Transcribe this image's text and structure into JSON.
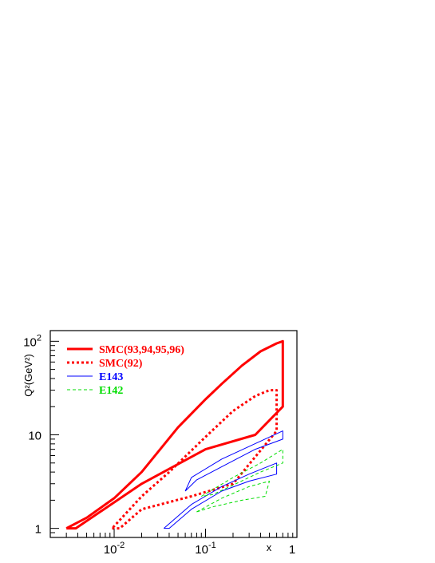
{
  "chart_data": {
    "type": "line",
    "title": "",
    "xlabel": "x",
    "ylabel": "Q²(GeV²)",
    "xscale": "log",
    "yscale": "log",
    "xlim": [
      0.002,
      1
    ],
    "ylim": [
      0.8,
      130
    ],
    "grid": false,
    "legend_position": "top-left",
    "x_ticks": [
      {
        "value": 0.01,
        "base": "10",
        "exp": "-2"
      },
      {
        "value": 0.1,
        "base": "10",
        "exp": "-1"
      },
      {
        "value": 1,
        "base": "1",
        "exp": ""
      }
    ],
    "y_ticks": [
      {
        "value": 1,
        "base": "1",
        "exp": ""
      },
      {
        "value": 10,
        "base": "10",
        "exp": ""
      },
      {
        "value": 100,
        "base": "10",
        "exp": "2"
      }
    ],
    "series": [
      {
        "name": "SMC(93,94,95,96)",
        "color": "#ff0000",
        "style": "solid",
        "width": 3,
        "points": [
          [
            0.003,
            1.0
          ],
          [
            0.0038,
            1.0
          ],
          [
            0.02,
            3.0
          ],
          [
            0.1,
            7.0
          ],
          [
            0.35,
            10.0
          ],
          [
            0.7,
            20.0
          ],
          [
            0.7,
            100.0
          ],
          [
            0.6,
            95.0
          ],
          [
            0.4,
            78.0
          ],
          [
            0.25,
            55.0
          ],
          [
            0.15,
            35.0
          ],
          [
            0.1,
            24.0
          ],
          [
            0.05,
            12.0
          ],
          [
            0.02,
            4.0
          ],
          [
            0.01,
            2.1
          ],
          [
            0.005,
            1.3
          ],
          [
            0.003,
            1.0
          ]
        ]
      },
      {
        "name": "SMC(92)",
        "color": "#ff0000",
        "style": "dotted",
        "width": 3,
        "points": [
          [
            0.0095,
            1.0
          ],
          [
            0.0115,
            1.0
          ],
          [
            0.02,
            1.6
          ],
          [
            0.07,
            2.2
          ],
          [
            0.2,
            3.0
          ],
          [
            0.6,
            11.0
          ],
          [
            0.6,
            30.0
          ],
          [
            0.5,
            30.0
          ],
          [
            0.35,
            26.0
          ],
          [
            0.2,
            18.0
          ],
          [
            0.1,
            9.5
          ],
          [
            0.04,
            4.0
          ],
          [
            0.02,
            2.2
          ],
          [
            0.0095,
            1.0
          ]
        ]
      },
      {
        "name": "E143",
        "color": "#0000ff",
        "style": "solid",
        "width": 1,
        "polygons": [
          [
            [
              0.06,
              2.5
            ],
            [
              0.07,
              3.5
            ],
            [
              0.15,
              5.5
            ],
            [
              0.3,
              7.5
            ],
            [
              0.7,
              11.0
            ],
            [
              0.7,
              9.0
            ],
            [
              0.35,
              7.0
            ],
            [
              0.18,
              5.0
            ],
            [
              0.08,
              3.3
            ],
            [
              0.06,
              2.5
            ]
          ],
          [
            [
              0.035,
              1.0
            ],
            [
              0.07,
              1.8
            ],
            [
              0.15,
              2.8
            ],
            [
              0.3,
              3.8
            ],
            [
              0.6,
              5.0
            ],
            [
              0.6,
              3.8
            ],
            [
              0.3,
              3.2
            ],
            [
              0.15,
              2.5
            ],
            [
              0.07,
              1.6
            ],
            [
              0.04,
              1.0
            ],
            [
              0.035,
              1.0
            ]
          ]
        ]
      },
      {
        "name": "E142",
        "color": "#00dd00",
        "style": "dashed",
        "width": 1,
        "polygons": [
          [
            [
              0.09,
              2.2
            ],
            [
              0.2,
              3.5
            ],
            [
              0.4,
              5.0
            ],
            [
              0.7,
              7.0
            ],
            [
              0.7,
              5.0
            ],
            [
              0.4,
              4.0
            ],
            [
              0.2,
              2.9
            ],
            [
              0.12,
              2.3
            ],
            [
              0.09,
              2.2
            ]
          ],
          [
            [
              0.08,
              1.5
            ],
            [
              0.15,
              2.1
            ],
            [
              0.3,
              2.8
            ],
            [
              0.5,
              3.2
            ],
            [
              0.45,
              2.2
            ],
            [
              0.25,
              2.0
            ],
            [
              0.12,
              1.7
            ],
            [
              0.08,
              1.5
            ]
          ]
        ]
      }
    ]
  }
}
